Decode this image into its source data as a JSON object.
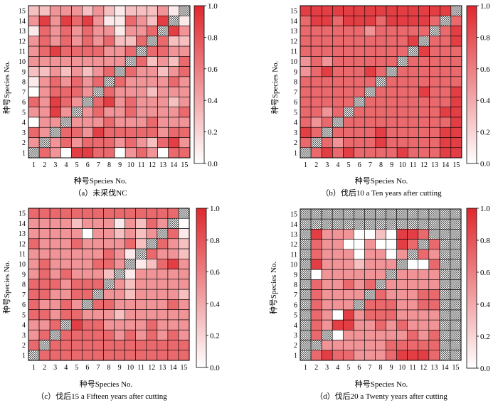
{
  "chart_data": [
    {
      "type": "heatmap",
      "id": "a",
      "caption": "（a）未采伐NC",
      "xlabel": "种号Species No.",
      "ylabel": "种号Species No.",
      "ticks": [
        "1",
        "2",
        "3",
        "4",
        "5",
        "6",
        "7",
        "8",
        "9",
        "10",
        "11",
        "12",
        "13",
        "14",
        "15"
      ],
      "colorbar": {
        "range": [
          0,
          1
        ],
        "ticks": [
          "0.0",
          "0.2",
          "0.4",
          "0.6",
          "0.8",
          "1.0"
        ]
      },
      "rows_top_to_bottom": [
        [
          0.3,
          0.3,
          0.5,
          0.5,
          0.5,
          0.3,
          0.5,
          0.3,
          0.1,
          0.3,
          0.3,
          0.3,
          0.5,
          0.1,
          null
        ],
        [
          0.5,
          0.9,
          0.5,
          0.9,
          0.7,
          0.9,
          0.5,
          0.1,
          0.1,
          0.7,
          0.5,
          0.3,
          0.9,
          null,
          0.1
        ],
        [
          0.1,
          0.7,
          0.5,
          0.7,
          0.5,
          0.7,
          0.5,
          0.5,
          0.1,
          0.5,
          0.5,
          0.7,
          null,
          0.9,
          0.5
        ],
        [
          0.5,
          0.7,
          0.5,
          0.7,
          0.5,
          0.7,
          0.5,
          0.7,
          0.3,
          0.3,
          0.7,
          null,
          0.7,
          0.3,
          0.3
        ],
        [
          0.5,
          0.7,
          0.9,
          0.7,
          0.7,
          0.7,
          0.7,
          0.5,
          0.5,
          0.7,
          null,
          0.7,
          0.7,
          0.5,
          0.5
        ],
        [
          0.5,
          0.5,
          0.5,
          0.5,
          0.5,
          0.5,
          0.5,
          0.5,
          0.5,
          null,
          0.7,
          0.3,
          0.5,
          0.3,
          0.7
        ],
        [
          0.3,
          0.3,
          0.5,
          0.3,
          0.5,
          0.3,
          0.5,
          0.7,
          null,
          0.7,
          0.5,
          0.5,
          0.3,
          0.5,
          0.7
        ],
        [
          0.1,
          0.5,
          0.7,
          0.5,
          0.7,
          0.5,
          0.7,
          null,
          0.7,
          0.5,
          0.5,
          0.5,
          0.5,
          0.7,
          0.5
        ],
        [
          0.0,
          0.5,
          0.7,
          0.7,
          0.7,
          0.5,
          null,
          0.7,
          0.5,
          0.5,
          0.5,
          0.3,
          0.5,
          0.5,
          0.5
        ],
        [
          0.7,
          0.5,
          0.9,
          0.7,
          0.5,
          null,
          0.7,
          0.9,
          0.5,
          0.7,
          0.5,
          0.5,
          0.5,
          0.3,
          0.5
        ],
        [
          0.5,
          0.5,
          0.9,
          0.5,
          null,
          0.5,
          0.7,
          0.5,
          0.5,
          0.7,
          0.5,
          0.5,
          0.5,
          0.5,
          0.7
        ],
        [
          0.0,
          0.5,
          0.5,
          null,
          0.5,
          0.5,
          0.5,
          0.7,
          0.5,
          0.5,
          0.5,
          0.7,
          0.5,
          0.5,
          0.5
        ],
        [
          0.7,
          0.5,
          null,
          0.7,
          0.7,
          0.5,
          0.9,
          0.7,
          0.7,
          0.7,
          0.7,
          0.7,
          0.5,
          0.7,
          0.7
        ],
        [
          0.5,
          null,
          0.5,
          0.7,
          0.5,
          0.7,
          0.7,
          0.7,
          0.5,
          0.7,
          0.5,
          0.3,
          0.7,
          0.9,
          0.5
        ],
        [
          null,
          0.7,
          0.5,
          0.0,
          0.9,
          0.9,
          0.7,
          0.7,
          0.0,
          0.5,
          0.7,
          0.5,
          0.0,
          0.7,
          0.7
        ]
      ]
    },
    {
      "type": "heatmap",
      "id": "b",
      "caption": "（b）伐后10 a Ten years after cutting",
      "xlabel": "种号Species No.",
      "ylabel": "种号Species No.",
      "ticks": [
        "1",
        "2",
        "3",
        "4",
        "5",
        "6",
        "7",
        "8",
        "9",
        "10",
        "11",
        "12",
        "13",
        "14",
        "15"
      ],
      "colorbar": {
        "range": [
          0,
          1
        ],
        "ticks": [
          "0.0",
          "0.2",
          "0.4",
          "0.6",
          "0.8",
          "1.0"
        ]
      },
      "rows_top_to_bottom": [
        [
          0.9,
          0.9,
          0.9,
          0.9,
          0.9,
          0.9,
          0.9,
          0.9,
          0.9,
          0.9,
          0.9,
          0.9,
          0.9,
          0.9,
          null
        ],
        [
          0.7,
          0.9,
          0.9,
          0.7,
          0.9,
          0.9,
          0.9,
          0.7,
          0.9,
          0.9,
          0.9,
          0.9,
          0.7,
          null,
          0.7
        ],
        [
          0.7,
          0.7,
          0.7,
          0.7,
          0.7,
          0.7,
          0.5,
          0.7,
          0.7,
          0.7,
          0.7,
          0.7,
          null,
          0.7,
          0.9
        ],
        [
          0.7,
          0.7,
          0.7,
          0.7,
          0.7,
          0.7,
          0.7,
          0.7,
          0.7,
          0.7,
          0.9,
          null,
          0.7,
          0.7,
          0.9
        ],
        [
          0.7,
          0.7,
          0.7,
          0.7,
          0.7,
          0.7,
          0.7,
          0.7,
          0.7,
          0.7,
          null,
          0.9,
          0.7,
          0.7,
          0.7
        ],
        [
          0.5,
          0.7,
          0.5,
          0.7,
          0.7,
          0.7,
          0.7,
          0.7,
          0.7,
          null,
          0.7,
          0.7,
          0.7,
          0.7,
          0.7
        ],
        [
          0.5,
          0.7,
          0.9,
          0.7,
          0.7,
          0.7,
          0.9,
          0.7,
          null,
          0.7,
          0.7,
          0.7,
          0.7,
          0.7,
          0.7
        ],
        [
          0.7,
          0.7,
          0.7,
          0.7,
          0.7,
          0.7,
          0.7,
          null,
          0.7,
          0.7,
          0.7,
          0.7,
          0.7,
          0.7,
          0.7
        ],
        [
          0.7,
          0.7,
          0.7,
          0.7,
          0.7,
          0.7,
          null,
          0.7,
          0.7,
          0.7,
          0.7,
          0.9,
          0.7,
          0.7,
          0.9
        ],
        [
          0.7,
          0.7,
          0.7,
          0.7,
          0.7,
          null,
          0.7,
          0.7,
          0.7,
          0.7,
          0.7,
          0.7,
          0.7,
          0.7,
          0.9
        ],
        [
          0.7,
          0.7,
          0.5,
          0.7,
          null,
          0.7,
          0.7,
          0.7,
          0.7,
          0.7,
          0.7,
          0.7,
          0.7,
          0.9,
          0.9
        ],
        [
          0.7,
          0.5,
          0.7,
          null,
          0.7,
          0.7,
          0.7,
          0.7,
          0.7,
          0.7,
          0.7,
          0.7,
          0.7,
          0.7,
          0.9
        ],
        [
          0.9,
          0.7,
          null,
          0.7,
          0.7,
          0.7,
          0.7,
          0.9,
          0.7,
          0.7,
          0.7,
          0.7,
          0.7,
          0.9,
          0.9
        ],
        [
          0.7,
          null,
          0.7,
          0.5,
          0.7,
          0.7,
          0.7,
          0.9,
          0.7,
          0.7,
          0.7,
          0.7,
          0.7,
          0.9,
          0.9
        ],
        [
          null,
          0.7,
          0.9,
          0.7,
          0.9,
          0.7,
          0.7,
          0.7,
          0.7,
          0.9,
          0.7,
          0.7,
          0.7,
          0.9,
          0.9
        ]
      ]
    },
    {
      "type": "heatmap",
      "id": "c",
      "caption": "（c）伐后15 a Fifteen years after cutting",
      "xlabel": "种号Species No.",
      "ylabel": "种号Species No.",
      "ticks": [
        "1",
        "2",
        "3",
        "4",
        "5",
        "6",
        "7",
        "8",
        "9",
        "10",
        "11",
        "12",
        "13",
        "14",
        "15"
      ],
      "colorbar": {
        "range": [
          0,
          1
        ],
        "ticks": [
          "0.0",
          "0.2",
          "0.4",
          "0.6",
          "0.8",
          "1.0"
        ]
      },
      "rows_top_to_bottom": [
        [
          0.7,
          0.7,
          0.7,
          0.7,
          0.7,
          0.7,
          0.7,
          0.7,
          0.7,
          0.7,
          0.7,
          0.7,
          0.7,
          0.7,
          null
        ],
        [
          0.5,
          0.5,
          0.5,
          0.5,
          0.3,
          0.5,
          0.5,
          0.5,
          0.1,
          0.5,
          0.3,
          0.7,
          0.5,
          null,
          0.0
        ],
        [
          0.5,
          0.5,
          0.5,
          0.5,
          0.5,
          0.0,
          0.5,
          0.5,
          0.3,
          0.5,
          0.3,
          0.5,
          null,
          0.7,
          0.1
        ],
        [
          0.7,
          0.5,
          0.5,
          0.5,
          0.7,
          0.5,
          0.5,
          0.5,
          0.5,
          0.7,
          0.3,
          null,
          0.7,
          0.5,
          0.3
        ],
        [
          0.5,
          0.5,
          0.5,
          0.5,
          0.5,
          0.5,
          0.5,
          0.7,
          0.5,
          0.1,
          null,
          0.7,
          0.5,
          0.5,
          0.3
        ],
        [
          0.5,
          0.7,
          0.5,
          0.5,
          0.5,
          0.5,
          0.7,
          0.7,
          0.5,
          null,
          0.1,
          0.3,
          0.7,
          0.9,
          0.5
        ],
        [
          0.5,
          0.7,
          0.5,
          0.7,
          0.5,
          0.5,
          0.5,
          0.3,
          null,
          0.1,
          0.5,
          0.5,
          0.5,
          0.5,
          0.5
        ],
        [
          0.7,
          0.7,
          0.7,
          0.5,
          0.7,
          0.7,
          0.7,
          null,
          0.5,
          0.3,
          0.5,
          0.5,
          0.5,
          0.5,
          0.5
        ],
        [
          0.7,
          0.7,
          0.5,
          0.5,
          0.7,
          0.7,
          null,
          0.5,
          0.5,
          0.3,
          0.5,
          0.5,
          0.5,
          0.5,
          0.3
        ],
        [
          0.7,
          0.5,
          0.5,
          0.7,
          0.5,
          null,
          0.7,
          0.7,
          0.5,
          0.5,
          0.5,
          0.5,
          0.5,
          0.7,
          0.5
        ],
        [
          0.7,
          0.7,
          0.5,
          0.7,
          0.7,
          0.5,
          0.5,
          0.5,
          0.3,
          0.5,
          0.5,
          0.5,
          0.5,
          0.5,
          0.5
        ],
        [
          0.5,
          0.5,
          0.7,
          null,
          0.9,
          0.7,
          0.7,
          0.5,
          0.5,
          0.5,
          0.5,
          0.7,
          0.5,
          0.5,
          0.5
        ],
        [
          0.5,
          0.7,
          null,
          0.7,
          0.7,
          0.7,
          0.7,
          0.7,
          0.5,
          0.7,
          0.5,
          0.7,
          0.5,
          0.7,
          0.5
        ],
        [
          0.7,
          null,
          0.7,
          0.7,
          0.7,
          0.7,
          0.7,
          0.7,
          0.7,
          0.7,
          0.7,
          0.7,
          0.7,
          0.7,
          0.7
        ],
        [
          null,
          0.7,
          0.7,
          0.7,
          0.7,
          0.7,
          0.7,
          0.7,
          0.7,
          0.7,
          0.7,
          0.7,
          0.7,
          0.7,
          0.7
        ]
      ]
    },
    {
      "type": "heatmap",
      "id": "d",
      "caption": "（d）伐后20 a Twenty years after cutting",
      "xlabel": "种号Species No.",
      "ylabel": "种号Species No.",
      "ticks": [
        "1",
        "2",
        "3",
        "4",
        "5",
        "6",
        "7",
        "8",
        "9",
        "10",
        "11",
        "12",
        "13",
        "14",
        "15"
      ],
      "colorbar": {
        "range": [
          0,
          1
        ],
        "ticks": [
          "0.0",
          "0.2",
          "0.4",
          "0.6",
          "0.8",
          "1.0"
        ]
      },
      "rows_top_to_bottom": [
        [
          null,
          null,
          null,
          null,
          null,
          null,
          null,
          null,
          null,
          null,
          null,
          null,
          null,
          null,
          null
        ],
        [
          null,
          null,
          null,
          null,
          null,
          null,
          null,
          null,
          null,
          null,
          null,
          null,
          null,
          null,
          null
        ],
        [
          null,
          0.9,
          0.5,
          0.5,
          0.5,
          0.0,
          0.0,
          0.3,
          0.0,
          0.9,
          0.9,
          0.7,
          null,
          null,
          null
        ],
        [
          null,
          0.7,
          0.5,
          0.5,
          0.0,
          0.0,
          0.5,
          0.0,
          0.0,
          0.9,
          0.7,
          null,
          0.7,
          null,
          null
        ],
        [
          null,
          0.7,
          0.5,
          0.5,
          0.5,
          0.0,
          0.5,
          0.5,
          0.0,
          0.5,
          null,
          0.7,
          0.5,
          null,
          null
        ],
        [
          null,
          0.9,
          0.5,
          0.5,
          0.5,
          0.3,
          0.5,
          0.5,
          0.5,
          null,
          0.0,
          0.0,
          0.7,
          null,
          null
        ],
        [
          null,
          0.0,
          0.5,
          0.5,
          0.5,
          0.5,
          0.5,
          0.5,
          null,
          0.5,
          0.5,
          0.5,
          0.5,
          null,
          null
        ],
        [
          null,
          0.7,
          0.5,
          0.5,
          0.7,
          0.5,
          0.7,
          null,
          0.5,
          0.5,
          0.5,
          0.5,
          0.5,
          null,
          null
        ],
        [
          null,
          0.7,
          0.5,
          0.5,
          0.5,
          0.5,
          null,
          0.7,
          0.5,
          0.5,
          0.5,
          0.7,
          0.7,
          null,
          null
        ],
        [
          null,
          0.7,
          0.5,
          0.5,
          0.5,
          null,
          0.7,
          0.7,
          0.7,
          0.5,
          0.5,
          0.7,
          0.7,
          null,
          null
        ],
        [
          null,
          0.7,
          0.5,
          0.0,
          0.9,
          0.5,
          0.7,
          0.7,
          0.7,
          0.5,
          0.5,
          0.5,
          0.5,
          null,
          null
        ],
        [
          null,
          0.7,
          0.5,
          0.9,
          0.9,
          0.5,
          0.5,
          0.7,
          0.5,
          0.7,
          0.5,
          0.5,
          0.5,
          null,
          null
        ],
        [
          null,
          0.7,
          null,
          0.0,
          0.5,
          0.5,
          0.5,
          0.5,
          0.5,
          0.5,
          0.7,
          0.5,
          0.7,
          null,
          null
        ],
        [
          null,
          null,
          0.5,
          0.5,
          0.5,
          0.5,
          0.5,
          0.5,
          0.7,
          0.7,
          0.7,
          0.7,
          0.7,
          null,
          null
        ],
        [
          null,
          0.7,
          0.9,
          0.7,
          0.7,
          0.5,
          0.5,
          0.5,
          0.7,
          0.9,
          0.9,
          0.9,
          0.7,
          null,
          null
        ]
      ]
    }
  ],
  "colors": {
    "low": "#ffffff",
    "high": "#e0282e",
    "grid": "#000000",
    "na": "#9a9a9a"
  }
}
